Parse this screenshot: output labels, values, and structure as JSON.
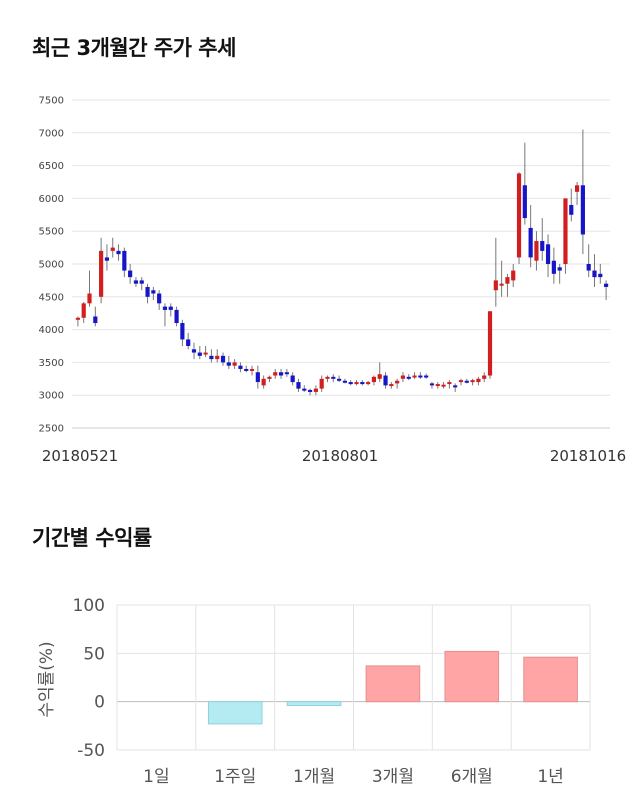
{
  "sections": {
    "price_title": "최근 3개월간 주가 추세",
    "returns_title": "기간별 수익률"
  },
  "chart_data": [
    {
      "type": "candlestick",
      "title": "최근 3개월간 주가 추세",
      "ylim": [
        2500,
        7500
      ],
      "y_ticks": [
        2500,
        3000,
        3500,
        4000,
        4500,
        5000,
        5500,
        6000,
        6500,
        7000,
        7500
      ],
      "x_tick_labels": [
        "20180521",
        "20180801",
        "20181016"
      ],
      "grid": true,
      "up_color": "#d21e1e",
      "down_color": "#1616c8",
      "candles": [
        [
          4150,
          4200,
          4050,
          4180
        ],
        [
          4180,
          4420,
          4100,
          4400
        ],
        [
          4400,
          4900,
          4350,
          4550
        ],
        [
          4200,
          4350,
          4050,
          4100
        ],
        [
          4500,
          5400,
          4400,
          5200
        ],
        [
          5100,
          5300,
          4900,
          5050
        ],
        [
          5200,
          5400,
          5100,
          5250
        ],
        [
          5200,
          5300,
          5050,
          5150
        ],
        [
          5200,
          5250,
          4800,
          4900
        ],
        [
          4900,
          5000,
          4700,
          4800
        ],
        [
          4750,
          4800,
          4650,
          4700
        ],
        [
          4750,
          4800,
          4600,
          4700
        ],
        [
          4650,
          4700,
          4400,
          4500
        ],
        [
          4600,
          4650,
          4450,
          4550
        ],
        [
          4550,
          4600,
          4300,
          4400
        ],
        [
          4350,
          4400,
          4050,
          4300
        ],
        [
          4350,
          4400,
          4200,
          4300
        ],
        [
          4300,
          4350,
          4050,
          4100
        ],
        [
          4100,
          4150,
          3750,
          3850
        ],
        [
          3850,
          3950,
          3700,
          3750
        ],
        [
          3700,
          3800,
          3550,
          3650
        ],
        [
          3650,
          3750,
          3550,
          3600
        ],
        [
          3650,
          3750,
          3580,
          3650
        ],
        [
          3600,
          3700,
          3500,
          3550
        ],
        [
          3550,
          3700,
          3500,
          3600
        ],
        [
          3600,
          3650,
          3450,
          3500
        ],
        [
          3500,
          3600,
          3400,
          3450
        ],
        [
          3450,
          3550,
          3400,
          3500
        ],
        [
          3450,
          3500,
          3350,
          3400
        ],
        [
          3400,
          3450,
          3350,
          3380
        ],
        [
          3380,
          3450,
          3300,
          3400
        ],
        [
          3350,
          3450,
          3100,
          3200
        ],
        [
          3150,
          3300,
          3100,
          3250
        ],
        [
          3250,
          3300,
          3200,
          3280
        ],
        [
          3300,
          3400,
          3250,
          3350
        ],
        [
          3350,
          3400,
          3250,
          3300
        ],
        [
          3350,
          3400,
          3280,
          3330
        ],
        [
          3300,
          3350,
          3150,
          3200
        ],
        [
          3200,
          3250,
          3050,
          3100
        ],
        [
          3100,
          3150,
          3050,
          3080
        ],
        [
          3080,
          3100,
          3000,
          3050
        ],
        [
          3050,
          3150,
          3000,
          3100
        ],
        [
          3100,
          3300,
          3050,
          3250
        ],
        [
          3250,
          3300,
          3200,
          3280
        ],
        [
          3280,
          3320,
          3200,
          3250
        ],
        [
          3250,
          3300,
          3200,
          3220
        ],
        [
          3220,
          3250,
          3180,
          3200
        ],
        [
          3200,
          3230,
          3150,
          3180
        ],
        [
          3180,
          3230,
          3150,
          3200
        ],
        [
          3200,
          3230,
          3150,
          3180
        ],
        [
          3180,
          3220,
          3150,
          3200
        ],
        [
          3200,
          3300,
          3150,
          3280
        ],
        [
          3250,
          3500,
          3200,
          3320
        ],
        [
          3300,
          3350,
          3100,
          3150
        ],
        [
          3150,
          3200,
          3100,
          3170
        ],
        [
          3180,
          3250,
          3100,
          3220
        ],
        [
          3250,
          3350,
          3200,
          3300
        ],
        [
          3280,
          3320,
          3230,
          3260
        ],
        [
          3280,
          3350,
          3250,
          3300
        ],
        [
          3300,
          3350,
          3250,
          3280
        ],
        [
          3300,
          3330,
          3250,
          3280
        ],
        [
          3180,
          3200,
          3100,
          3150
        ],
        [
          3150,
          3200,
          3100,
          3170
        ],
        [
          3150,
          3200,
          3100,
          3160
        ],
        [
          3180,
          3230,
          3100,
          3200
        ],
        [
          3150,
          3180,
          3050,
          3120
        ],
        [
          3200,
          3250,
          3150,
          3230
        ],
        [
          3220,
          3250,
          3180,
          3200
        ],
        [
          3200,
          3250,
          3150,
          3230
        ],
        [
          3200,
          3280,
          3150,
          3250
        ],
        [
          3250,
          3350,
          3200,
          3300
        ],
        [
          3300,
          4280,
          3250,
          4280
        ],
        [
          4600,
          5400,
          4350,
          4750
        ],
        [
          4700,
          5050,
          4500,
          4700
        ],
        [
          4700,
          4850,
          4500,
          4800
        ],
        [
          4750,
          5000,
          4650,
          4900
        ],
        [
          5100,
          6400,
          5000,
          6380
        ],
        [
          6200,
          6850,
          5600,
          5700
        ],
        [
          5550,
          5900,
          4950,
          5100
        ],
        [
          5050,
          5500,
          4900,
          5350
        ],
        [
          5350,
          5700,
          5050,
          5200
        ],
        [
          5300,
          5450,
          4800,
          5000
        ],
        [
          5050,
          5250,
          4700,
          4850
        ],
        [
          4950,
          5000,
          4700,
          4900
        ],
        [
          5000,
          6000,
          4850,
          6000
        ],
        [
          5900,
          6150,
          5650,
          5750
        ],
        [
          6100,
          6250,
          5900,
          6200
        ],
        [
          6200,
          7050,
          5150,
          5450
        ],
        [
          5000,
          5300,
          4800,
          4900
        ],
        [
          4900,
          5150,
          4650,
          4800
        ],
        [
          4850,
          5000,
          4700,
          4800
        ],
        [
          4700,
          4750,
          4450,
          4650
        ]
      ]
    },
    {
      "type": "bar",
      "categories": [
        "1일",
        "1주일",
        "1개월",
        "3개월",
        "6개월",
        "1년"
      ],
      "values": [
        0,
        -23,
        -4,
        37,
        52,
        46
      ],
      "ylabel": "수익률(%)",
      "ylim": [
        -50,
        100
      ],
      "y_ticks": [
        -50,
        0,
        50,
        100
      ],
      "grid": true,
      "positive_color": "#ffa5a5",
      "negative_color": "#b4ebf2"
    }
  ]
}
